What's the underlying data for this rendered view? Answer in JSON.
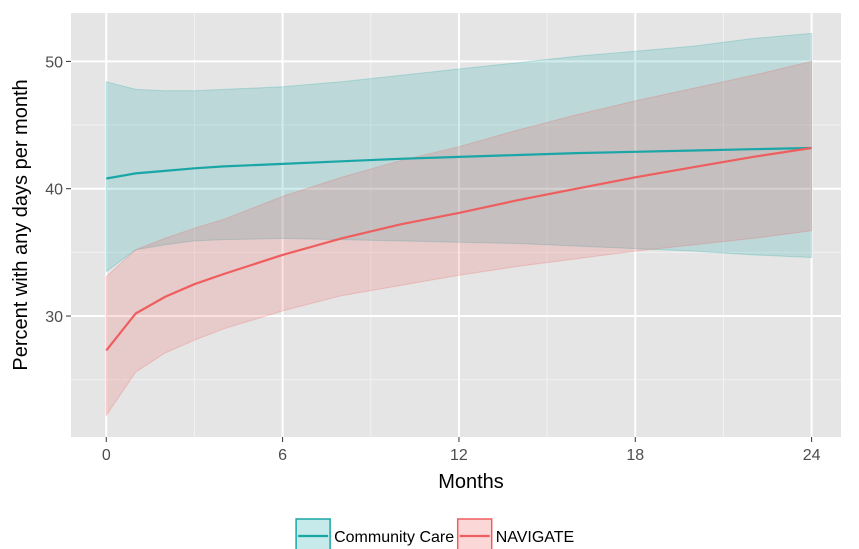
{
  "chart_data": {
    "type": "line",
    "title": "",
    "xlabel": "Months",
    "ylabel": "Percent with any days per month",
    "xlim": [
      -1.2,
      25.0
    ],
    "ylim": [
      20.5,
      53.8
    ],
    "x_ticks": [
      0,
      6,
      12,
      18,
      24
    ],
    "x_tick_labels": [
      "0",
      "6",
      "12",
      "18",
      "24"
    ],
    "y_ticks": [
      30,
      40,
      50
    ],
    "y_tick_labels": [
      "30",
      "40",
      "50"
    ],
    "grid": true,
    "legend_position": "bottom",
    "colors": {
      "panel_bg": "#e5e5e5",
      "grid_major": "#ffffff",
      "grid_minor": "#f2f2f2",
      "community_care": "#1aa6a6",
      "navigate": "#ef5e5e"
    },
    "x": [
      0,
      1,
      2,
      3,
      4,
      6,
      8,
      10,
      12,
      14,
      16,
      18,
      20,
      22,
      24
    ],
    "series": [
      {
        "name": "Community Care",
        "color": "#1aa6a6",
        "values": [
          40.8,
          41.2,
          41.4,
          41.6,
          41.75,
          41.95,
          42.15,
          42.35,
          42.5,
          42.65,
          42.8,
          42.9,
          43.0,
          43.1,
          43.2
        ],
        "lower": [
          33.5,
          35.2,
          35.6,
          35.9,
          36.0,
          36.1,
          36.0,
          35.9,
          35.8,
          35.7,
          35.5,
          35.3,
          35.1,
          34.8,
          34.6
        ],
        "upper": [
          48.4,
          47.8,
          47.7,
          47.7,
          47.8,
          48.0,
          48.4,
          48.9,
          49.4,
          49.9,
          50.4,
          50.8,
          51.2,
          51.8,
          52.2
        ]
      },
      {
        "name": "NAVIGATE",
        "color": "#ef5e5e",
        "values": [
          27.3,
          30.2,
          31.5,
          32.5,
          33.3,
          34.8,
          36.1,
          37.2,
          38.1,
          39.1,
          40.0,
          40.9,
          41.7,
          42.5,
          43.2
        ],
        "lower": [
          22.2,
          25.6,
          27.1,
          28.1,
          29.0,
          30.4,
          31.6,
          32.4,
          33.2,
          33.9,
          34.5,
          35.1,
          35.6,
          36.1,
          36.7
        ],
        "upper": [
          33.1,
          35.2,
          36.1,
          36.9,
          37.6,
          39.4,
          40.9,
          42.2,
          43.3,
          44.6,
          45.8,
          46.9,
          47.9,
          48.9,
          50.0
        ]
      }
    ]
  }
}
